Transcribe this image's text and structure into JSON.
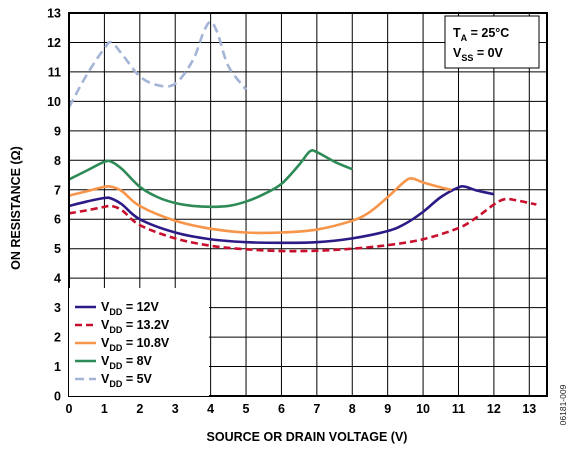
{
  "chart_data": {
    "type": "line",
    "xlabel": "SOURCE OR DRAIN VOLTAGE (V)",
    "ylabel": "ON RESISTANCE (Ω)",
    "xlim": [
      0,
      13.5
    ],
    "ylim": [
      0,
      13
    ],
    "x_ticks": [
      "0",
      "1",
      "2",
      "3",
      "4",
      "5",
      "6",
      "7",
      "8",
      "9",
      "10",
      "11",
      "12",
      "13"
    ],
    "y_ticks": [
      "0",
      "1",
      "2",
      "3",
      "4",
      "5",
      "6",
      "7",
      "8",
      "9",
      "10",
      "11",
      "12",
      "13"
    ],
    "grid": true,
    "conditions": [
      {
        "main": "T",
        "sub": "A",
        "rest": " = 25°C"
      },
      {
        "main": "V",
        "sub": "SS",
        "rest": " = 0V"
      }
    ],
    "legend_position": "bottom-left",
    "series": [
      {
        "label_main": "V",
        "label_sub": "DD",
        "label_rest": " = 12V",
        "color": "#2e1a87",
        "dash": "",
        "x": [
          0,
          0.5,
          1.0,
          1.2,
          1.5,
          2.0,
          3.0,
          4.0,
          5.0,
          6.0,
          7.0,
          8.0,
          9.0,
          9.5,
          10.0,
          10.5,
          11.0,
          11.2,
          11.5,
          12.0
        ],
        "y": [
          6.45,
          6.6,
          6.72,
          6.7,
          6.5,
          6.0,
          5.55,
          5.32,
          5.22,
          5.2,
          5.22,
          5.35,
          5.6,
          5.85,
          6.25,
          6.75,
          7.08,
          7.1,
          6.98,
          6.85
        ]
      },
      {
        "label_main": "V",
        "label_sub": "DD",
        "label_rest": " = 13.2V",
        "color": "#c8102e",
        "dash": "7,4",
        "x": [
          0,
          0.5,
          1.0,
          1.2,
          1.5,
          2.0,
          3.0,
          4.0,
          5.0,
          6.0,
          7.0,
          8.0,
          9.0,
          10.0,
          11.0,
          11.5,
          12.0,
          12.3,
          12.6,
          13.0,
          13.2
        ],
        "y": [
          6.2,
          6.3,
          6.42,
          6.45,
          6.3,
          5.8,
          5.35,
          5.1,
          4.98,
          4.92,
          4.93,
          5.0,
          5.12,
          5.32,
          5.7,
          6.05,
          6.5,
          6.68,
          6.65,
          6.55,
          6.5
        ]
      },
      {
        "label_main": "V",
        "label_sub": "DD",
        "label_rest": " = 10.8V",
        "color": "#f7954a",
        "dash": "",
        "x": [
          0,
          0.5,
          1.0,
          1.2,
          1.5,
          2.0,
          3.0,
          4.0,
          5.0,
          6.0,
          7.0,
          8.0,
          8.5,
          9.0,
          9.5,
          9.7,
          10.0,
          10.5,
          10.8
        ],
        "y": [
          6.8,
          6.95,
          7.1,
          7.1,
          6.95,
          6.45,
          5.95,
          5.68,
          5.55,
          5.55,
          5.65,
          5.95,
          6.25,
          6.75,
          7.3,
          7.38,
          7.25,
          7.08,
          7.0
        ]
      },
      {
        "label_main": "V",
        "label_sub": "DD",
        "label_rest": " = 8V",
        "color": "#2e8b57",
        "dash": "",
        "x": [
          0,
          0.5,
          1.0,
          1.2,
          1.5,
          2.0,
          2.5,
          3.0,
          3.5,
          4.0,
          4.5,
          5.0,
          5.5,
          6.0,
          6.5,
          6.8,
          7.0,
          7.5,
          8.0
        ],
        "y": [
          7.35,
          7.65,
          7.95,
          7.95,
          7.7,
          7.1,
          6.75,
          6.55,
          6.45,
          6.42,
          6.45,
          6.6,
          6.85,
          7.2,
          7.85,
          8.3,
          8.28,
          7.95,
          7.7
        ]
      },
      {
        "label_main": "V",
        "label_sub": "DD",
        "label_rest": " = 5V",
        "color": "#a3b4d6",
        "dash": "9,5",
        "x": [
          0,
          0.5,
          1.0,
          1.2,
          1.5,
          2.0,
          2.5,
          3.0,
          3.5,
          3.8,
          4.0,
          4.2,
          4.5,
          5.0
        ],
        "y": [
          9.8,
          10.9,
          11.8,
          12.0,
          11.6,
          10.85,
          10.55,
          10.6,
          11.4,
          12.35,
          12.7,
          12.3,
          11.2,
          10.4
        ]
      }
    ]
  },
  "figure_id": "06181-009"
}
